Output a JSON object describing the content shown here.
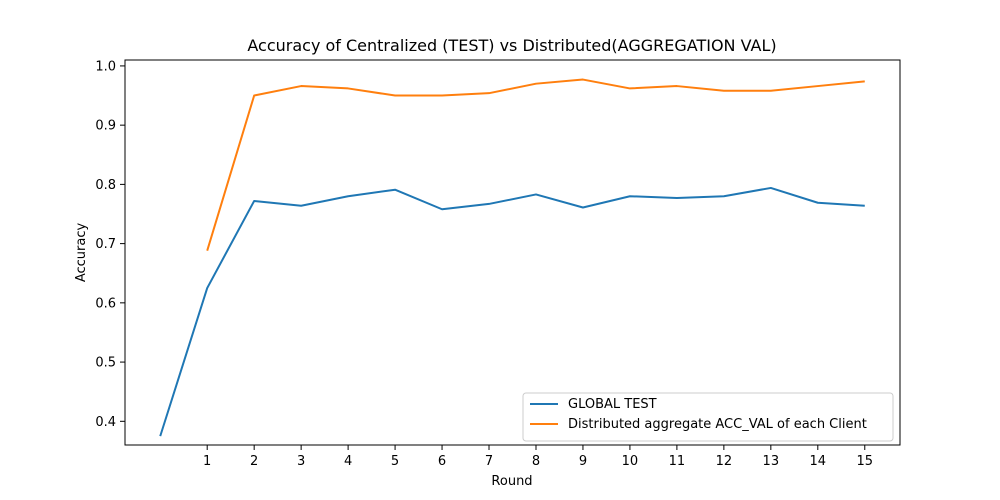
{
  "chart_data": {
    "type": "line",
    "title": "Accuracy of Centralized (TEST) vs Distributed(AGGREGATION VAL)",
    "xlabel": "Round",
    "ylabel": "Accuracy",
    "x_ticks": [
      1,
      2,
      3,
      4,
      5,
      6,
      7,
      8,
      9,
      10,
      11,
      12,
      13,
      14,
      15
    ],
    "y_ticks": [
      0.4,
      0.5,
      0.6,
      0.7,
      0.8,
      0.9,
      1.0
    ],
    "xlim": [
      -0.75,
      15.75
    ],
    "ylim": [
      0.36,
      1.01
    ],
    "grid": false,
    "legend_position": "bottom-right",
    "series": [
      {
        "name": "GLOBAL TEST",
        "color": "#1f77b4",
        "x": [
          0,
          1,
          2,
          3,
          4,
          5,
          6,
          7,
          8,
          9,
          10,
          11,
          12,
          13,
          14,
          15
        ],
        "y": [
          0.375,
          0.625,
          0.772,
          0.764,
          0.78,
          0.791,
          0.758,
          0.767,
          0.783,
          0.761,
          0.78,
          0.777,
          0.78,
          0.794,
          0.769,
          0.764
        ]
      },
      {
        "name": "Distributed aggregate ACC_VAL of each Client",
        "color": "#ff7f0e",
        "x": [
          1,
          2,
          3,
          4,
          5,
          6,
          7,
          8,
          9,
          10,
          11,
          12,
          13,
          14,
          15
        ],
        "y": [
          0.688,
          0.95,
          0.966,
          0.962,
          0.95,
          0.95,
          0.954,
          0.97,
          0.977,
          0.962,
          0.966,
          0.958,
          0.958,
          0.966,
          0.974
        ]
      }
    ]
  }
}
